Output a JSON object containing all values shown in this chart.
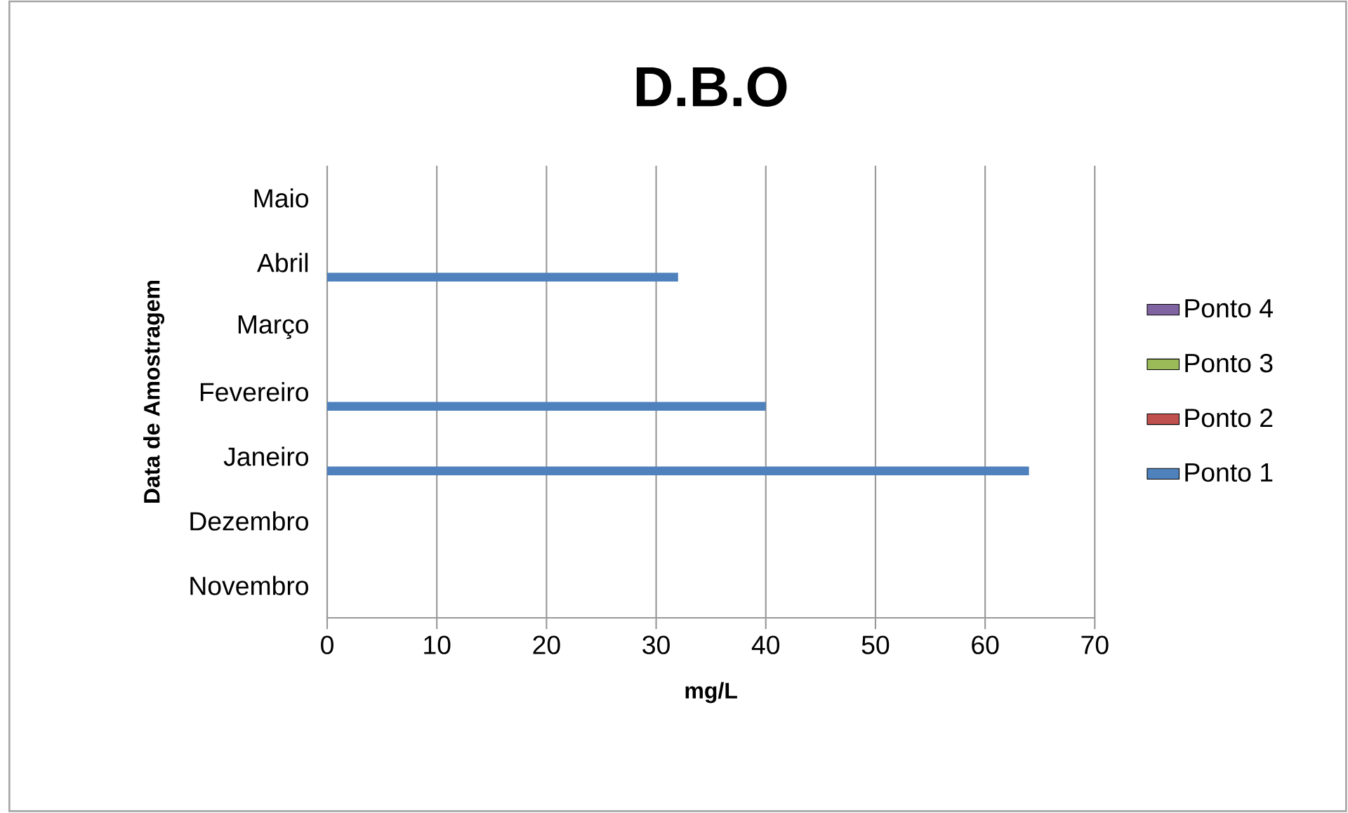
{
  "chart_data": {
    "type": "bar",
    "orientation": "horizontal",
    "title": "D.B.O",
    "xlabel": "mg/L",
    "ylabel": "Data de Amostragem",
    "categories": [
      "Maio",
      "Abril",
      "Março",
      "Fevereiro",
      "Janeiro",
      "Dezembro",
      "Novembro"
    ],
    "series": [
      {
        "name": "Ponto 1",
        "color": "#4f81bd",
        "values": [
          null,
          32,
          null,
          40,
          64,
          null,
          null
        ]
      },
      {
        "name": "Ponto 2",
        "color": "#c0504d",
        "values": [
          null,
          null,
          null,
          null,
          null,
          null,
          null
        ]
      },
      {
        "name": "Ponto 3",
        "color": "#9bbb59",
        "values": [
          null,
          null,
          null,
          null,
          null,
          null,
          null
        ]
      },
      {
        "name": "Ponto 4",
        "color": "#8064a2",
        "values": [
          null,
          null,
          null,
          null,
          null,
          null,
          null
        ]
      }
    ],
    "xlim": [
      0,
      70
    ],
    "xticks": [
      0,
      10,
      20,
      30,
      40,
      50,
      60,
      70
    ],
    "grid": "x",
    "legend": "right"
  }
}
